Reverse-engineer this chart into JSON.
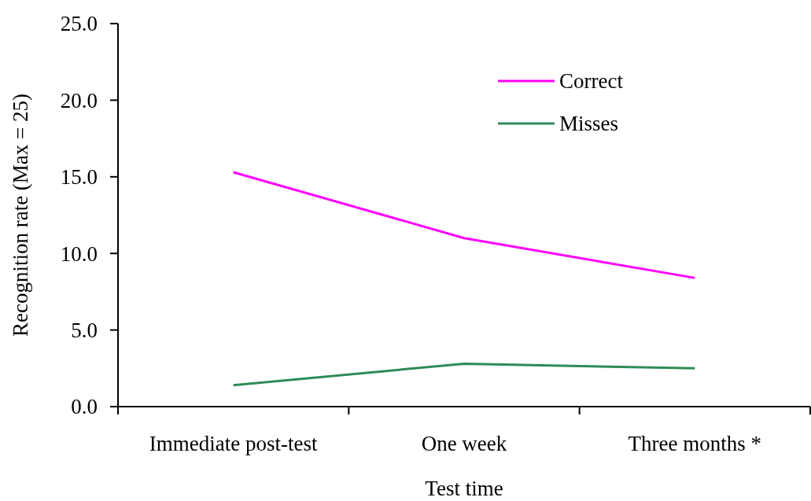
{
  "chart_data": {
    "type": "line",
    "xlabel": "Test time",
    "ylabel": "Recognition rate (Max = 25)",
    "categories": [
      "Immediate post-test",
      "One week",
      "Three months *"
    ],
    "series": [
      {
        "name": "Correct",
        "color": "#ff00ff",
        "values": [
          15.3,
          11.0,
          8.4
        ]
      },
      {
        "name": "Misses",
        "color": "#2e8b57",
        "values": [
          1.4,
          2.8,
          2.5
        ]
      }
    ],
    "ylim": [
      0,
      25
    ],
    "yticks": [
      {
        "value": 0,
        "label": "0.0"
      },
      {
        "value": 5,
        "label": "5.0"
      },
      {
        "value": 10,
        "label": "10.0"
      },
      {
        "value": 15,
        "label": "15.0"
      },
      {
        "value": 20,
        "label": "20.0"
      },
      {
        "value": 25,
        "label": "25.0"
      }
    ],
    "legend": "top right",
    "grid": false,
    "marker": "none",
    "line_style": "solid"
  }
}
